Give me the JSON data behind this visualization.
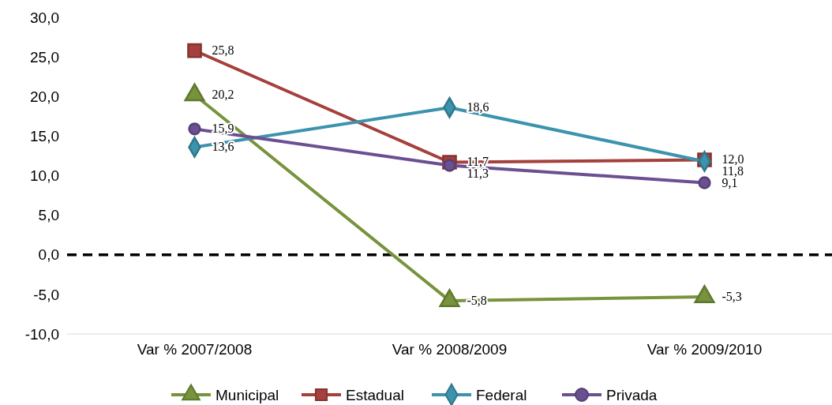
{
  "chart_data": {
    "type": "line",
    "categories": [
      "Var % 2007/2008",
      "Var % 2008/2009",
      "Var % 2009/2010"
    ],
    "series": [
      {
        "name": "Municipal",
        "color": "#77933c",
        "marker": "triangle",
        "values": [
          20.2,
          -5.8,
          -5.3
        ],
        "value_labels": [
          "20,2",
          "-5,8",
          "-5,3"
        ]
      },
      {
        "name": "Estadual",
        "color": "#a5403d",
        "marker": "square",
        "values": [
          25.8,
          11.7,
          12.0
        ],
        "value_labels": [
          "25,8",
          "11,7",
          "12,0"
        ]
      },
      {
        "name": "Federal",
        "color": "#3c93ad",
        "marker": "diamond",
        "values": [
          13.6,
          18.6,
          11.8
        ],
        "value_labels": [
          "13,6",
          "18,6",
          "11,8"
        ]
      },
      {
        "name": "Privada",
        "color": "#6a4f91",
        "marker": "circle",
        "values": [
          15.9,
          11.3,
          9.1
        ],
        "value_labels": [
          "15,9",
          "11,3",
          "9,1"
        ]
      }
    ],
    "ylim": [
      -10,
      30
    ],
    "yticks": [
      {
        "value": -10,
        "label": "-10,0"
      },
      {
        "value": -5,
        "label": "-5,0"
      },
      {
        "value": 0,
        "label": "0,0"
      },
      {
        "value": 5,
        "label": "5,0"
      },
      {
        "value": 10,
        "label": "10,0"
      },
      {
        "value": 15,
        "label": "15,0"
      },
      {
        "value": 20,
        "label": "20,0"
      },
      {
        "value": 25,
        "label": "25,0"
      },
      {
        "value": 30,
        "label": "30,0"
      }
    ],
    "ref_lines": [
      {
        "axis": "y",
        "value": 0,
        "color": "#000000",
        "line_style": "dashed"
      }
    ],
    "grid": false,
    "legend": "bottom"
  }
}
